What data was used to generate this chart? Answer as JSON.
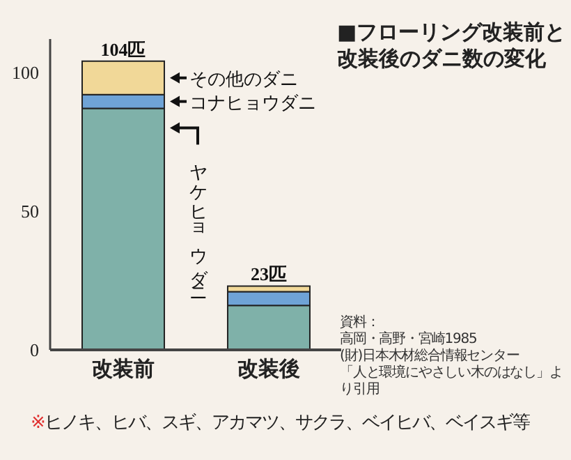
{
  "chart_data": {
    "type": "bar",
    "stacked": true,
    "title": "■フローリング改装前と改装後のダニ数の変化",
    "categories": [
      "改装前",
      "改装後"
    ],
    "series": [
      {
        "name": "ヤケヒョウダニ",
        "color": "#7fb1a9",
        "values": [
          87,
          16
        ]
      },
      {
        "name": "コナヒョウダニ",
        "color": "#6fa3d6",
        "values": [
          5,
          5
        ]
      },
      {
        "name": "その他のダニ",
        "color": "#f1d898",
        "values": [
          12,
          2
        ]
      }
    ],
    "totals": [
      "104匹",
      "23匹"
    ],
    "ylim": [
      0,
      112
    ],
    "yticks": [
      0,
      50,
      100
    ],
    "grid": false,
    "legend": false,
    "annotations": [
      "資料：",
      "高岡・高野・宮崎1985",
      "(財)日本木材総合情報センター",
      "「人と環境にやさしい木のはなし」より引用",
      "※ヒノキ、ヒバ、スギ、アカマツ、サクラ、ベイヒバ、ベイスギ等"
    ]
  }
}
